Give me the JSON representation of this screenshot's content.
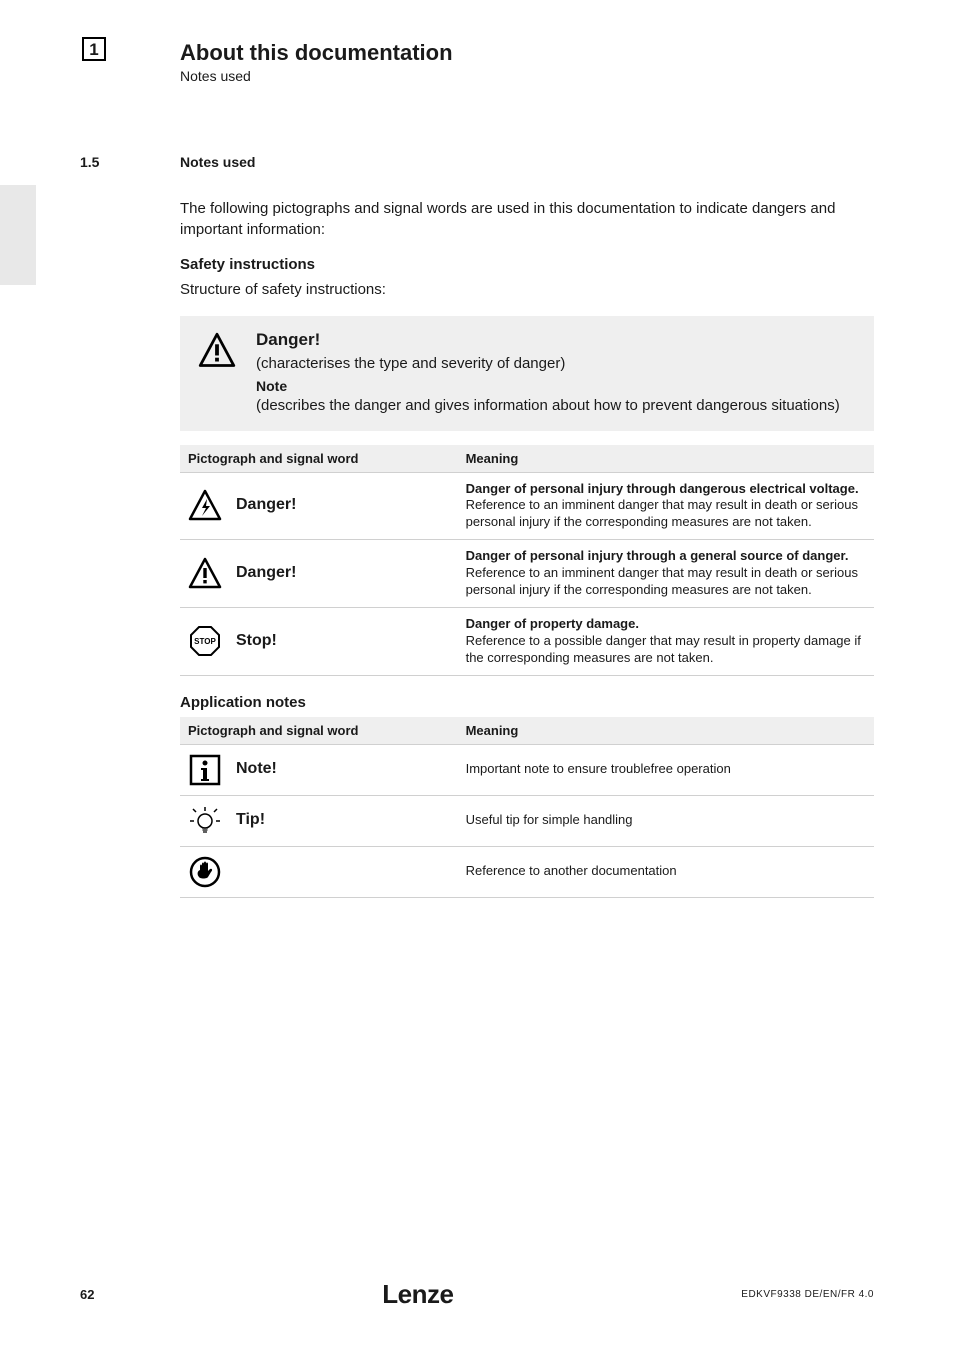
{
  "header": {
    "chapter_num": "1",
    "chapter_title": "About this documentation",
    "chapter_sub": "Notes used"
  },
  "section": {
    "num": "1.5",
    "title": "Notes used"
  },
  "intro_text": "The following pictographs and signal words are used in this documentation to indicate dangers and important information:",
  "safety": {
    "heading": "Safety instructions",
    "subtext": "Structure of safety instructions:",
    "callout": {
      "title": "Danger!",
      "line1": "(characterises the type and severity of danger)",
      "note_label": "Note",
      "line2": "(describes the danger and gives information about how to prevent dangerous situations)"
    },
    "table": {
      "col1": "Pictograph and signal word",
      "col2": "Meaning",
      "rows": [
        {
          "icon": "hv-triangle",
          "word": "Danger!",
          "meaning": "Danger of personal injury through dangerous electrical voltage.\nReference to an imminent danger that may result in death or serious personal injury if the corresponding measures are not taken."
        },
        {
          "icon": "excl-triangle",
          "word": "Danger!",
          "meaning": "Danger of personal injury through a general source of danger.\nReference to an imminent danger that may result in death or serious personal injury if the corresponding measures are not taken."
        },
        {
          "icon": "stop-octagon",
          "word": "Stop!",
          "meaning": "Danger of property damage.\nReference to a possible danger that may result in property damage if the corresponding measures are not taken."
        }
      ]
    }
  },
  "appnotes": {
    "heading": "Application notes",
    "table": {
      "col1": "Pictograph and signal word",
      "col2": "Meaning",
      "rows": [
        {
          "icon": "info-square",
          "word": "Note!",
          "meaning": "Important note to ensure troublefree operation"
        },
        {
          "icon": "bulb",
          "word": "Tip!",
          "meaning": "Useful tip for simple handling"
        },
        {
          "icon": "hand-circle",
          "word": "",
          "meaning": "Reference to another documentation"
        }
      ]
    }
  },
  "footer": {
    "page": "62",
    "logo": "Lenze",
    "doc_code": "EDKVF9338  DE/EN/FR  4.0"
  },
  "colors": {
    "bg": "#ffffff",
    "text": "#1a1a1a",
    "panel": "#efefef",
    "border": "#d0d0d0",
    "tab": "#e8e8e8"
  }
}
